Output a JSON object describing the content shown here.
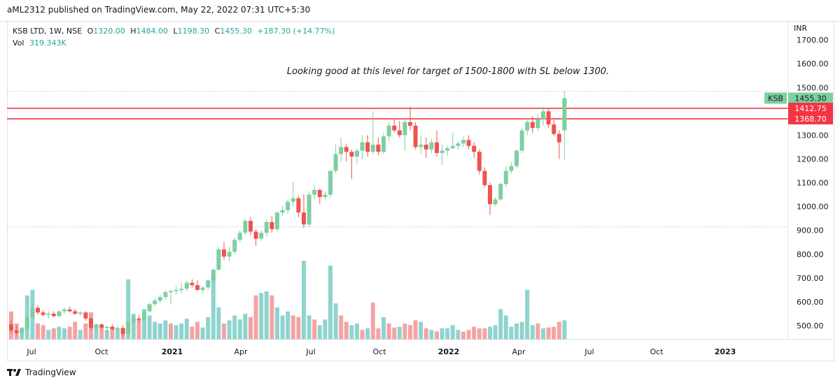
{
  "header": {
    "publisher": "aML2312 published on TradingView.com, May 22, 2022 07:31 UTC+5:30"
  },
  "legend": {
    "symbol": "KSB LTD, 1W, NSE",
    "open_label": "O",
    "open": "1320.00",
    "high_label": "H",
    "high": "1484.00",
    "low_label": "L",
    "low": "1198.30",
    "close_label": "C",
    "close": "1455.30",
    "change": "+187.30 (+14.77%)",
    "vol_label": "Vol",
    "vol": "319.343K"
  },
  "footer": {
    "brand": "TradingView"
  },
  "colors": {
    "up": "#26a69a",
    "down": "#ef5350",
    "up_candle": "#7dcfa0",
    "vol_up": "#8fd3ce",
    "vol_down": "#f4a3a3",
    "level": "#f23645"
  },
  "chart_data": {
    "type": "candlestick",
    "currency": "INR",
    "ylim": [
      440,
      1720
    ],
    "y_ticks": [
      "500.00",
      "600.00",
      "700.00",
      "800.00",
      "900.00",
      "1000.00",
      "1100.00",
      "1200.00",
      "1300.00",
      "1400.00",
      "1500.00",
      "1600.00",
      "1700.00"
    ],
    "x_ticks": [
      "Jul",
      "Oct",
      "2021",
      "Apr",
      "Jul",
      "Oct",
      "2022",
      "Apr",
      "Jul",
      "Oct",
      "2023"
    ],
    "annotation": "Looking good at this level for target of 1500-1800 with SL below 1300.",
    "price_label": {
      "symbol": "KSB",
      "value": "1455.30"
    },
    "levels": [
      {
        "value": 1412.75,
        "label": "1412.75"
      },
      {
        "value": 1368.7,
        "label": "1368.70"
      }
    ],
    "dotted_levels": [
      1484,
      915
    ],
    "candles": [
      {
        "o": 505,
        "h": 520,
        "l": 470,
        "c": 480
      },
      {
        "o": 480,
        "h": 500,
        "l": 460,
        "c": 470
      },
      {
        "o": 470,
        "h": 490,
        "l": 455,
        "c": 485
      },
      {
        "o": 485,
        "h": 540,
        "l": 480,
        "c": 535
      },
      {
        "o": 535,
        "h": 590,
        "l": 530,
        "c": 575
      },
      {
        "o": 575,
        "h": 585,
        "l": 545,
        "c": 555
      },
      {
        "o": 555,
        "h": 565,
        "l": 540,
        "c": 545
      },
      {
        "o": 545,
        "h": 560,
        "l": 530,
        "c": 550
      },
      {
        "o": 550,
        "h": 560,
        "l": 535,
        "c": 540
      },
      {
        "o": 540,
        "h": 565,
        "l": 535,
        "c": 560
      },
      {
        "o": 560,
        "h": 575,
        "l": 550,
        "c": 568
      },
      {
        "o": 568,
        "h": 580,
        "l": 555,
        "c": 560
      },
      {
        "o": 560,
        "h": 570,
        "l": 545,
        "c": 550
      },
      {
        "o": 550,
        "h": 560,
        "l": 540,
        "c": 555
      },
      {
        "o": 555,
        "h": 560,
        "l": 520,
        "c": 530
      },
      {
        "o": 530,
        "h": 535,
        "l": 480,
        "c": 490
      },
      {
        "o": 490,
        "h": 510,
        "l": 480,
        "c": 505
      },
      {
        "o": 505,
        "h": 510,
        "l": 485,
        "c": 490
      },
      {
        "o": 490,
        "h": 500,
        "l": 470,
        "c": 495
      },
      {
        "o": 495,
        "h": 505,
        "l": 480,
        "c": 485
      },
      {
        "o": 485,
        "h": 500,
        "l": 475,
        "c": 490
      },
      {
        "o": 490,
        "h": 500,
        "l": 455,
        "c": 465
      },
      {
        "o": 465,
        "h": 525,
        "l": 460,
        "c": 515
      },
      {
        "o": 515,
        "h": 540,
        "l": 505,
        "c": 530
      },
      {
        "o": 530,
        "h": 545,
        "l": 515,
        "c": 525
      },
      {
        "o": 525,
        "h": 565,
        "l": 520,
        "c": 560
      },
      {
        "o": 560,
        "h": 595,
        "l": 555,
        "c": 590
      },
      {
        "o": 590,
        "h": 615,
        "l": 580,
        "c": 605
      },
      {
        "o": 605,
        "h": 630,
        "l": 595,
        "c": 620
      },
      {
        "o": 620,
        "h": 650,
        "l": 610,
        "c": 640
      },
      {
        "o": 640,
        "h": 650,
        "l": 590,
        "c": 645
      },
      {
        "o": 645,
        "h": 665,
        "l": 630,
        "c": 650
      },
      {
        "o": 650,
        "h": 680,
        "l": 635,
        "c": 655
      },
      {
        "o": 655,
        "h": 690,
        "l": 645,
        "c": 680
      },
      {
        "o": 680,
        "h": 695,
        "l": 660,
        "c": 670
      },
      {
        "o": 670,
        "h": 690,
        "l": 645,
        "c": 650
      },
      {
        "o": 650,
        "h": 665,
        "l": 635,
        "c": 660
      },
      {
        "o": 660,
        "h": 695,
        "l": 650,
        "c": 690
      },
      {
        "o": 690,
        "h": 740,
        "l": 680,
        "c": 735
      },
      {
        "o": 735,
        "h": 830,
        "l": 730,
        "c": 820
      },
      {
        "o": 820,
        "h": 850,
        "l": 775,
        "c": 790
      },
      {
        "o": 790,
        "h": 830,
        "l": 770,
        "c": 810
      },
      {
        "o": 810,
        "h": 870,
        "l": 800,
        "c": 860
      },
      {
        "o": 860,
        "h": 900,
        "l": 850,
        "c": 890
      },
      {
        "o": 890,
        "h": 950,
        "l": 880,
        "c": 940
      },
      {
        "o": 940,
        "h": 955,
        "l": 880,
        "c": 895
      },
      {
        "o": 895,
        "h": 905,
        "l": 835,
        "c": 865
      },
      {
        "o": 865,
        "h": 900,
        "l": 855,
        "c": 890
      },
      {
        "o": 890,
        "h": 945,
        "l": 875,
        "c": 935
      },
      {
        "o": 935,
        "h": 960,
        "l": 890,
        "c": 905
      },
      {
        "o": 905,
        "h": 980,
        "l": 895,
        "c": 975
      },
      {
        "o": 975,
        "h": 1005,
        "l": 960,
        "c": 985
      },
      {
        "o": 985,
        "h": 1030,
        "l": 970,
        "c": 1020
      },
      {
        "o": 1020,
        "h": 1105,
        "l": 1000,
        "c": 1035
      },
      {
        "o": 1035,
        "h": 1045,
        "l": 955,
        "c": 975
      },
      {
        "o": 975,
        "h": 1050,
        "l": 910,
        "c": 925
      },
      {
        "o": 925,
        "h": 1065,
        "l": 915,
        "c": 1050
      },
      {
        "o": 1050,
        "h": 1090,
        "l": 1030,
        "c": 1070
      },
      {
        "o": 1070,
        "h": 1075,
        "l": 1010,
        "c": 1040
      },
      {
        "o": 1040,
        "h": 1065,
        "l": 1030,
        "c": 1050
      },
      {
        "o": 1050,
        "h": 1150,
        "l": 1035,
        "c": 1150
      },
      {
        "o": 1150,
        "h": 1260,
        "l": 1140,
        "c": 1220
      },
      {
        "o": 1220,
        "h": 1290,
        "l": 1190,
        "c": 1250
      },
      {
        "o": 1250,
        "h": 1265,
        "l": 1190,
        "c": 1230
      },
      {
        "o": 1230,
        "h": 1240,
        "l": 1115,
        "c": 1210
      },
      {
        "o": 1210,
        "h": 1245,
        "l": 1180,
        "c": 1235
      },
      {
        "o": 1235,
        "h": 1300,
        "l": 1200,
        "c": 1270
      },
      {
        "o": 1270,
        "h": 1300,
        "l": 1210,
        "c": 1230
      },
      {
        "o": 1230,
        "h": 1400,
        "l": 1220,
        "c": 1260
      },
      {
        "o": 1260,
        "h": 1290,
        "l": 1215,
        "c": 1230
      },
      {
        "o": 1230,
        "h": 1310,
        "l": 1220,
        "c": 1295
      },
      {
        "o": 1295,
        "h": 1355,
        "l": 1275,
        "c": 1340
      },
      {
        "o": 1340,
        "h": 1370,
        "l": 1310,
        "c": 1320
      },
      {
        "o": 1320,
        "h": 1360,
        "l": 1290,
        "c": 1300
      },
      {
        "o": 1300,
        "h": 1370,
        "l": 1235,
        "c": 1355
      },
      {
        "o": 1355,
        "h": 1420,
        "l": 1320,
        "c": 1340
      },
      {
        "o": 1340,
        "h": 1355,
        "l": 1240,
        "c": 1250
      },
      {
        "o": 1250,
        "h": 1300,
        "l": 1220,
        "c": 1260
      },
      {
        "o": 1260,
        "h": 1290,
        "l": 1205,
        "c": 1240
      },
      {
        "o": 1240,
        "h": 1285,
        "l": 1225,
        "c": 1270
      },
      {
        "o": 1270,
        "h": 1320,
        "l": 1210,
        "c": 1225
      },
      {
        "o": 1225,
        "h": 1260,
        "l": 1175,
        "c": 1235
      },
      {
        "o": 1235,
        "h": 1255,
        "l": 1215,
        "c": 1245
      },
      {
        "o": 1245,
        "h": 1310,
        "l": 1240,
        "c": 1255
      },
      {
        "o": 1255,
        "h": 1275,
        "l": 1240,
        "c": 1265
      },
      {
        "o": 1265,
        "h": 1295,
        "l": 1250,
        "c": 1280
      },
      {
        "o": 1280,
        "h": 1300,
        "l": 1240,
        "c": 1255
      },
      {
        "o": 1255,
        "h": 1270,
        "l": 1205,
        "c": 1230
      },
      {
        "o": 1230,
        "h": 1240,
        "l": 1135,
        "c": 1150
      },
      {
        "o": 1150,
        "h": 1165,
        "l": 1080,
        "c": 1090
      },
      {
        "o": 1090,
        "h": 1100,
        "l": 965,
        "c": 1010
      },
      {
        "o": 1010,
        "h": 1040,
        "l": 1000,
        "c": 1030
      },
      {
        "o": 1030,
        "h": 1100,
        "l": 1025,
        "c": 1095
      },
      {
        "o": 1095,
        "h": 1170,
        "l": 1085,
        "c": 1150
      },
      {
        "o": 1150,
        "h": 1185,
        "l": 1140,
        "c": 1170
      },
      {
        "o": 1170,
        "h": 1240,
        "l": 1160,
        "c": 1235
      },
      {
        "o": 1235,
        "h": 1330,
        "l": 1225,
        "c": 1320
      },
      {
        "o": 1320,
        "h": 1370,
        "l": 1300,
        "c": 1355
      },
      {
        "o": 1355,
        "h": 1380,
        "l": 1310,
        "c": 1330
      },
      {
        "o": 1330,
        "h": 1385,
        "l": 1320,
        "c": 1365
      },
      {
        "o": 1365,
        "h": 1420,
        "l": 1340,
        "c": 1400
      },
      {
        "o": 1400,
        "h": 1410,
        "l": 1330,
        "c": 1345
      },
      {
        "o": 1345,
        "h": 1365,
        "l": 1295,
        "c": 1305
      },
      {
        "o": 1305,
        "h": 1320,
        "l": 1200,
        "c": 1270
      },
      {
        "o": 1320,
        "h": 1484,
        "l": 1198.3,
        "c": 1455.3
      }
    ],
    "volume": [
      {
        "v": 0.35,
        "up": false
      },
      {
        "v": 0.2,
        "up": false
      },
      {
        "v": 0.15,
        "up": true
      },
      {
        "v": 0.55,
        "up": true
      },
      {
        "v": 0.62,
        "up": true
      },
      {
        "v": 0.2,
        "up": false
      },
      {
        "v": 0.18,
        "up": false
      },
      {
        "v": 0.12,
        "up": true
      },
      {
        "v": 0.14,
        "up": false
      },
      {
        "v": 0.16,
        "up": true
      },
      {
        "v": 0.14,
        "up": true
      },
      {
        "v": 0.16,
        "up": false
      },
      {
        "v": 0.22,
        "up": false
      },
      {
        "v": 0.12,
        "up": true
      },
      {
        "v": 0.2,
        "up": false
      },
      {
        "v": 0.34,
        "up": false
      },
      {
        "v": 0.18,
        "up": true
      },
      {
        "v": 0.14,
        "up": false
      },
      {
        "v": 0.12,
        "up": true
      },
      {
        "v": 0.16,
        "up": false
      },
      {
        "v": 0.14,
        "up": true
      },
      {
        "v": 0.14,
        "up": false
      },
      {
        "v": 0.75,
        "up": true
      },
      {
        "v": 0.32,
        "up": true
      },
      {
        "v": 0.26,
        "up": false
      },
      {
        "v": 0.38,
        "up": true
      },
      {
        "v": 0.3,
        "up": true
      },
      {
        "v": 0.22,
        "up": true
      },
      {
        "v": 0.2,
        "up": true
      },
      {
        "v": 0.24,
        "up": true
      },
      {
        "v": 0.2,
        "up": false
      },
      {
        "v": 0.18,
        "up": true
      },
      {
        "v": 0.2,
        "up": true
      },
      {
        "v": 0.26,
        "up": true
      },
      {
        "v": 0.16,
        "up": false
      },
      {
        "v": 0.22,
        "up": false
      },
      {
        "v": 0.15,
        "up": true
      },
      {
        "v": 0.28,
        "up": true
      },
      {
        "v": 0.82,
        "up": true
      },
      {
        "v": 0.4,
        "up": true
      },
      {
        "v": 0.2,
        "up": false
      },
      {
        "v": 0.24,
        "up": true
      },
      {
        "v": 0.3,
        "up": true
      },
      {
        "v": 0.25,
        "up": true
      },
      {
        "v": 0.32,
        "up": true
      },
      {
        "v": 0.28,
        "up": false
      },
      {
        "v": 0.55,
        "up": false
      },
      {
        "v": 0.58,
        "up": true
      },
      {
        "v": 0.6,
        "up": true
      },
      {
        "v": 0.55,
        "up": false
      },
      {
        "v": 0.4,
        "up": true
      },
      {
        "v": 0.3,
        "up": true
      },
      {
        "v": 0.35,
        "up": true
      },
      {
        "v": 0.3,
        "up": false
      },
      {
        "v": 0.28,
        "up": false
      },
      {
        "v": 0.98,
        "up": true
      },
      {
        "v": 0.3,
        "up": true
      },
      {
        "v": 0.25,
        "up": false
      },
      {
        "v": 0.18,
        "up": true
      },
      {
        "v": 0.25,
        "up": true
      },
      {
        "v": 0.92,
        "up": true
      },
      {
        "v": 0.45,
        "up": true
      },
      {
        "v": 0.3,
        "up": false
      },
      {
        "v": 0.22,
        "up": false
      },
      {
        "v": 0.18,
        "up": true
      },
      {
        "v": 0.2,
        "up": true
      },
      {
        "v": 0.12,
        "up": false
      },
      {
        "v": 0.14,
        "up": true
      },
      {
        "v": 0.46,
        "up": false
      },
      {
        "v": 0.14,
        "up": false
      },
      {
        "v": 0.28,
        "up": true
      },
      {
        "v": 0.2,
        "up": false
      },
      {
        "v": 0.15,
        "up": false
      },
      {
        "v": 0.16,
        "up": true
      },
      {
        "v": 0.2,
        "up": false
      },
      {
        "v": 0.18,
        "up": false
      },
      {
        "v": 0.24,
        "up": false
      },
      {
        "v": 0.22,
        "up": true
      },
      {
        "v": 0.14,
        "up": false
      },
      {
        "v": 0.12,
        "up": true
      },
      {
        "v": 0.1,
        "up": false
      },
      {
        "v": 0.14,
        "up": true
      },
      {
        "v": 0.14,
        "up": true
      },
      {
        "v": 0.18,
        "up": true
      },
      {
        "v": 0.12,
        "up": true
      },
      {
        "v": 0.1,
        "up": false
      },
      {
        "v": 0.12,
        "up": false
      },
      {
        "v": 0.16,
        "up": false
      },
      {
        "v": 0.14,
        "up": false
      },
      {
        "v": 0.14,
        "up": false
      },
      {
        "v": 0.16,
        "up": true
      },
      {
        "v": 0.18,
        "up": true
      },
      {
        "v": 0.38,
        "up": true
      },
      {
        "v": 0.3,
        "up": true
      },
      {
        "v": 0.16,
        "up": true
      },
      {
        "v": 0.2,
        "up": true
      },
      {
        "v": 0.22,
        "up": true
      },
      {
        "v": 0.62,
        "up": true
      },
      {
        "v": 0.18,
        "up": true
      },
      {
        "v": 0.2,
        "up": false
      },
      {
        "v": 0.14,
        "up": true
      },
      {
        "v": 0.15,
        "up": false
      },
      {
        "v": 0.16,
        "up": false
      },
      {
        "v": 0.22,
        "up": false
      },
      {
        "v": 0.24,
        "up": true
      }
    ]
  }
}
